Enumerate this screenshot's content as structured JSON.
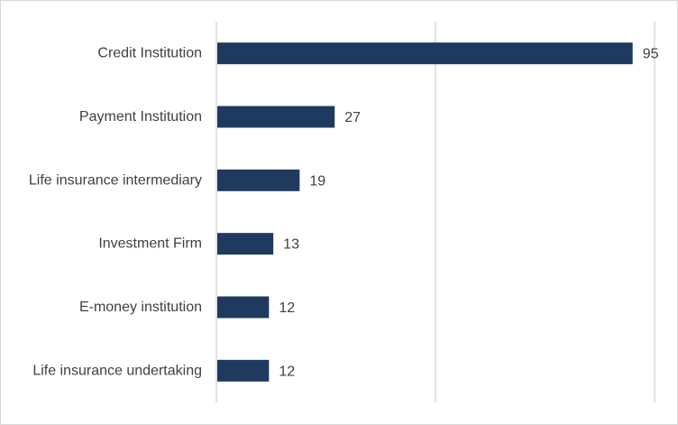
{
  "chart_data": {
    "type": "bar",
    "orientation": "horizontal",
    "categories": [
      "Credit Institution",
      "Payment Institution",
      "Life insurance intermediary",
      "Investment Firm",
      "E-money institution",
      "Life insurance undertaking"
    ],
    "values": [
      95,
      27,
      19,
      13,
      12,
      12
    ],
    "xlim": [
      0,
      100
    ],
    "x_gridlines": [
      0,
      50,
      100
    ],
    "grid": true,
    "legend": "none",
    "bar_color": "#1f3a5f",
    "title": "",
    "xlabel": "",
    "ylabel": ""
  }
}
